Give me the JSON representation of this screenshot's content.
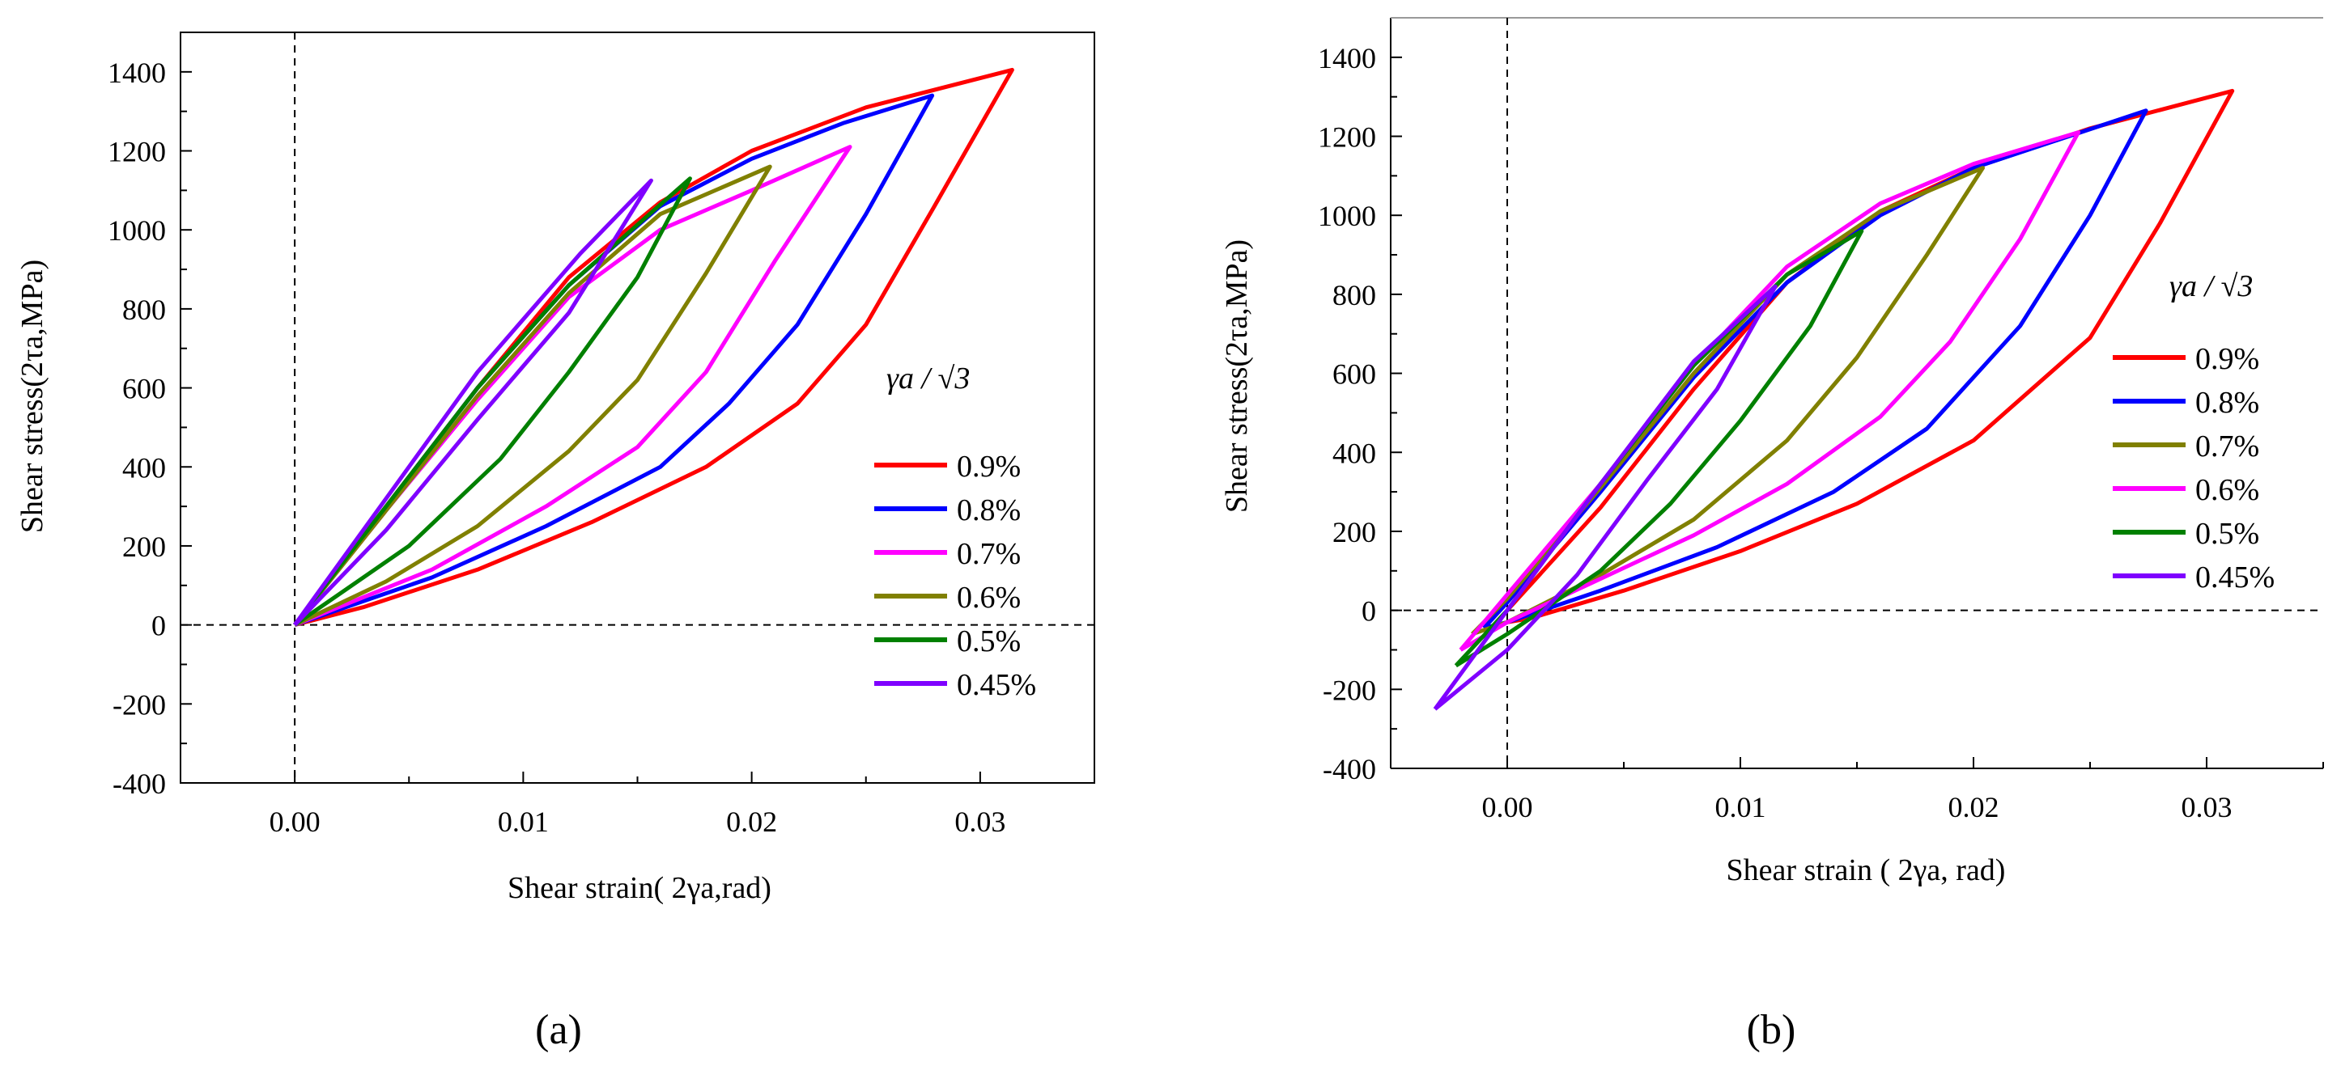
{
  "chart_data": [
    {
      "panel": "(a)",
      "panel_letter": "a",
      "type": "line",
      "title": "",
      "xlabel": "Shear strain( 2γa,rad)",
      "ylabel": "Shear stress(2τa,MPa)",
      "xlim": [
        -0.005,
        0.035
      ],
      "ylim": [
        -400,
        1500
      ],
      "x_ticks": [
        0.0,
        0.01,
        0.02,
        0.03
      ],
      "x_tick_labels": [
        "0.00",
        "0.01",
        "0.02",
        "0.03"
      ],
      "y_ticks": [
        -400,
        -200,
        0,
        200,
        400,
        600,
        800,
        1000,
        1200,
        1400
      ],
      "y_tick_labels": [
        "-400",
        "-200",
        "0",
        "200",
        "400",
        "600",
        "800",
        "1000",
        "1200",
        "1400"
      ],
      "reference_lines": {
        "x": 0,
        "y": 0
      },
      "legend_title": "γa / √3",
      "legend_position": "right",
      "series": [
        {
          "name": "0.9%",
          "color": "#ff0000",
          "upper": [
            [
              0.0,
              0.0
            ],
            [
              0.004,
              300
            ],
            [
              0.008,
              600
            ],
            [
              0.012,
              880
            ],
            [
              0.016,
              1070
            ],
            [
              0.02,
              1200
            ],
            [
              0.025,
              1310
            ],
            [
              0.0314,
              1405
            ]
          ],
          "lower": [
            [
              0.0314,
              1405
            ],
            [
              0.028,
              1060
            ],
            [
              0.025,
              760
            ],
            [
              0.022,
              560
            ],
            [
              0.018,
              400
            ],
            [
              0.013,
              260
            ],
            [
              0.008,
              140
            ],
            [
              0.003,
              45
            ],
            [
              0.0,
              0.0
            ]
          ]
        },
        {
          "name": "0.8%",
          "color": "#0000ff",
          "upper": [
            [
              0.0,
              0.0
            ],
            [
              0.004,
              300
            ],
            [
              0.008,
              600
            ],
            [
              0.012,
              860
            ],
            [
              0.016,
              1060
            ],
            [
              0.02,
              1180
            ],
            [
              0.024,
              1270
            ],
            [
              0.0279,
              1340
            ]
          ],
          "lower": [
            [
              0.0279,
              1340
            ],
            [
              0.025,
              1040
            ],
            [
              0.022,
              760
            ],
            [
              0.019,
              560
            ],
            [
              0.016,
              400
            ],
            [
              0.011,
              250
            ],
            [
              0.006,
              120
            ],
            [
              0.0,
              0.0
            ]
          ]
        },
        {
          "name": "0.7%",
          "color": "#ff00ff",
          "upper": [
            [
              0.0,
              0.0
            ],
            [
              0.004,
              290
            ],
            [
              0.008,
              570
            ],
            [
              0.012,
              830
            ],
            [
              0.016,
              1000
            ],
            [
              0.02,
              1100
            ],
            [
              0.0243,
              1210
            ]
          ],
          "lower": [
            [
              0.0243,
              1210
            ],
            [
              0.021,
              920
            ],
            [
              0.018,
              640
            ],
            [
              0.015,
              450
            ],
            [
              0.011,
              300
            ],
            [
              0.006,
              140
            ],
            [
              0.0,
              0.0
            ]
          ]
        },
        {
          "name": "0.6%",
          "color": "#808000",
          "upper": [
            [
              0.0,
              0.0
            ],
            [
              0.004,
              290
            ],
            [
              0.008,
              580
            ],
            [
              0.012,
              840
            ],
            [
              0.016,
              1040
            ],
            [
              0.0208,
              1160
            ]
          ],
          "lower": [
            [
              0.0208,
              1160
            ],
            [
              0.018,
              890
            ],
            [
              0.015,
              620
            ],
            [
              0.012,
              440
            ],
            [
              0.008,
              250
            ],
            [
              0.004,
              110
            ],
            [
              0.0,
              0.0
            ]
          ]
        },
        {
          "name": "0.5%",
          "color": "#008000",
          "upper": [
            [
              0.0,
              0.0
            ],
            [
              0.004,
              300
            ],
            [
              0.008,
              600
            ],
            [
              0.012,
              860
            ],
            [
              0.0173,
              1130
            ]
          ],
          "lower": [
            [
              0.0173,
              1130
            ],
            [
              0.015,
              880
            ],
            [
              0.012,
              640
            ],
            [
              0.009,
              420
            ],
            [
              0.005,
              200
            ],
            [
              0.0,
              0.0
            ]
          ]
        },
        {
          "name": "0.45%",
          "color": "#7f00ff",
          "upper": [
            [
              0.0,
              0.0
            ],
            [
              0.004,
              320
            ],
            [
              0.008,
              640
            ],
            [
              0.0125,
              940
            ],
            [
              0.0156,
              1125
            ]
          ],
          "lower": [
            [
              0.0156,
              1125
            ],
            [
              0.012,
              790
            ],
            [
              0.008,
              520
            ],
            [
              0.004,
              240
            ],
            [
              0.0,
              0.0
            ]
          ]
        }
      ]
    },
    {
      "panel": "(b)",
      "panel_letter": "b",
      "type": "line",
      "title": "",
      "xlabel": "Shear strain ( 2γa, rad)",
      "ylabel": "Shear stress(2τa,MPa)",
      "xlim": [
        -0.005,
        0.035
      ],
      "ylim": [
        -400,
        1500
      ],
      "x_ticks": [
        0.0,
        0.01,
        0.02,
        0.03
      ],
      "x_tick_labels": [
        "0.00",
        "0.01",
        "0.02",
        "0.03"
      ],
      "y_ticks": [
        -400,
        -200,
        0,
        200,
        400,
        600,
        800,
        1000,
        1200,
        1400
      ],
      "y_tick_labels": [
        "-400",
        "-200",
        "0",
        "200",
        "400",
        "600",
        "800",
        "1000",
        "1200",
        "1400"
      ],
      "reference_lines": {
        "x": 0,
        "y": 0
      },
      "legend_title": "γa / √3",
      "legend_position": "right",
      "series": [
        {
          "name": "0.9%",
          "color": "#ff0000",
          "upper": [
            [
              0.0,
              0.0
            ],
            [
              0.004,
              260
            ],
            [
              0.008,
              560
            ],
            [
              0.012,
              830
            ],
            [
              0.016,
              1010
            ],
            [
              0.02,
              1120
            ],
            [
              0.025,
              1220
            ],
            [
              0.0311,
              1315
            ]
          ],
          "lower": [
            [
              0.0311,
              1315
            ],
            [
              0.028,
              980
            ],
            [
              0.025,
              690
            ],
            [
              0.02,
              430
            ],
            [
              0.015,
              270
            ],
            [
              0.01,
              150
            ],
            [
              0.005,
              50
            ],
            [
              0.001,
              -20
            ],
            [
              0.0,
              -30
            ]
          ]
        },
        {
          "name": "0.8%",
          "color": "#0000ff",
          "upper": [
            [
              -0.001,
              -45
            ],
            [
              0.0,
              20
            ],
            [
              0.004,
              300
            ],
            [
              0.008,
              590
            ],
            [
              0.012,
              830
            ],
            [
              0.016,
              1000
            ],
            [
              0.02,
              1120
            ],
            [
              0.0274,
              1265
            ]
          ],
          "lower": [
            [
              0.0274,
              1265
            ],
            [
              0.025,
              1000
            ],
            [
              0.022,
              720
            ],
            [
              0.018,
              460
            ],
            [
              0.014,
              300
            ],
            [
              0.009,
              160
            ],
            [
              0.004,
              50
            ],
            [
              0.0,
              -30
            ],
            [
              -0.001,
              -45
            ]
          ]
        },
        {
          "name": "0.7%",
          "color": "#808000",
          "upper": [
            [
              -0.0015,
              -60
            ],
            [
              0.0,
              30
            ],
            [
              0.004,
              310
            ],
            [
              0.008,
              600
            ],
            [
              0.012,
              850
            ],
            [
              0.016,
              1010
            ],
            [
              0.0204,
              1120
            ]
          ],
          "lower": [
            [
              0.0204,
              1120
            ],
            [
              0.018,
              900
            ],
            [
              0.015,
              640
            ],
            [
              0.012,
              430
            ],
            [
              0.008,
              230
            ],
            [
              0.004,
              90
            ],
            [
              0.0,
              -30
            ],
            [
              -0.0015,
              -60
            ]
          ]
        },
        {
          "name": "0.6%",
          "color": "#ff00ff",
          "upper": [
            [
              -0.002,
              -100
            ],
            [
              0.0,
              40
            ],
            [
              0.004,
              320
            ],
            [
              0.008,
              620
            ],
            [
              0.012,
              870
            ],
            [
              0.016,
              1030
            ],
            [
              0.02,
              1130
            ],
            [
              0.0245,
              1210
            ]
          ],
          "lower": [
            [
              0.0245,
              1210
            ],
            [
              0.022,
              940
            ],
            [
              0.019,
              680
            ],
            [
              0.016,
              490
            ],
            [
              0.012,
              320
            ],
            [
              0.008,
              190
            ],
            [
              0.004,
              80
            ],
            [
              0.0,
              -30
            ],
            [
              -0.002,
              -100
            ]
          ]
        },
        {
          "name": "0.5%",
          "color": "#008000",
          "upper": [
            [
              -0.0022,
              -140
            ],
            [
              0.0,
              0
            ],
            [
              0.004,
              320
            ],
            [
              0.008,
              620
            ],
            [
              0.012,
              850
            ],
            [
              0.0152,
              960
            ]
          ],
          "lower": [
            [
              0.0152,
              960
            ],
            [
              0.013,
              720
            ],
            [
              0.01,
              480
            ],
            [
              0.007,
              270
            ],
            [
              0.004,
              100
            ],
            [
              0.0,
              -60
            ],
            [
              -0.0022,
              -140
            ]
          ]
        },
        {
          "name": "0.45%",
          "color": "#7f00ff",
          "upper": [
            [
              -0.0031,
              -250
            ],
            [
              0.0,
              0
            ],
            [
              0.004,
              320
            ],
            [
              0.008,
              630
            ],
            [
              0.0115,
              820
            ]
          ],
          "lower": [
            [
              0.0115,
              820
            ],
            [
              0.009,
              560
            ],
            [
              0.006,
              330
            ],
            [
              0.003,
              90
            ],
            [
              0.0,
              -100
            ],
            [
              -0.0031,
              -250
            ]
          ]
        }
      ]
    }
  ]
}
